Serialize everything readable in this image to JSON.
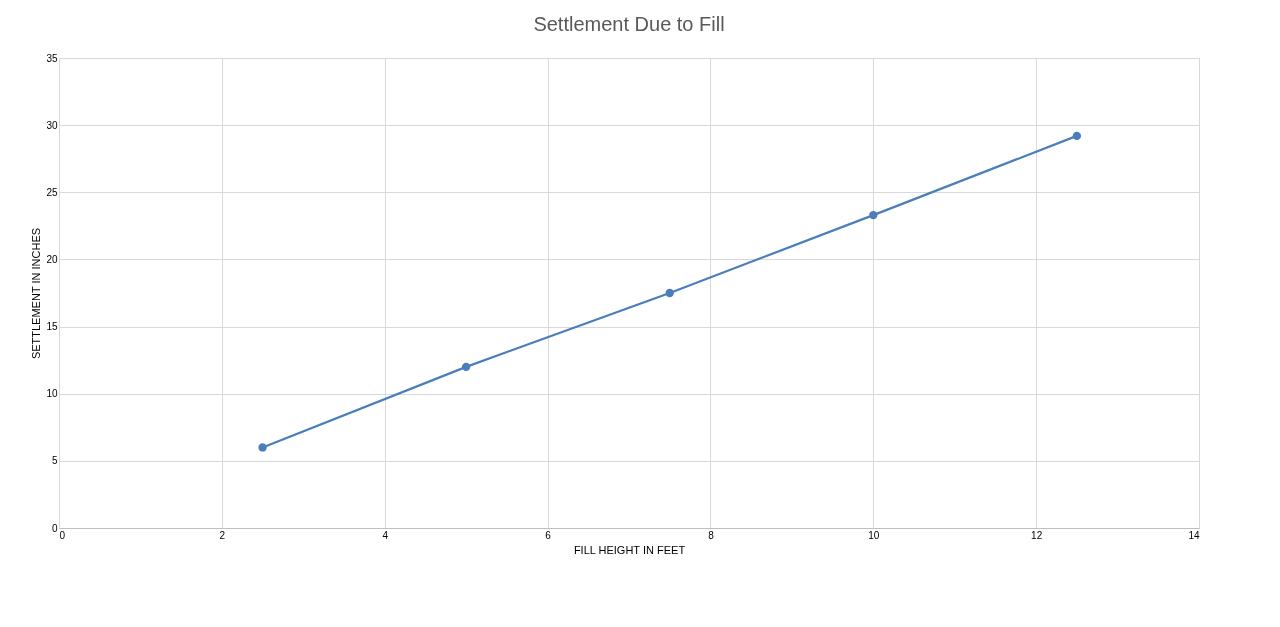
{
  "chart_data": {
    "type": "line",
    "title": "Settlement Due to Fill",
    "xlabel": "FILL HEIGHT IN FEET",
    "ylabel": "SETTLEMENT IN INCHES",
    "x": [
      2.5,
      5,
      7.5,
      10,
      12.5
    ],
    "series": [
      {
        "color": "#4a7ebb",
        "values": [
          6,
          12,
          17.5,
          23.3,
          29.2
        ]
      }
    ],
    "xlim": [
      0,
      14
    ],
    "xticks": [
      0,
      2,
      4,
      6,
      8,
      10,
      12,
      14
    ],
    "ylim": [
      0,
      35
    ],
    "yticks": [
      0,
      5,
      10,
      15,
      20,
      25,
      30,
      35
    ],
    "grid": true,
    "legend": false,
    "marker": "circle",
    "line_style": "solid"
  }
}
